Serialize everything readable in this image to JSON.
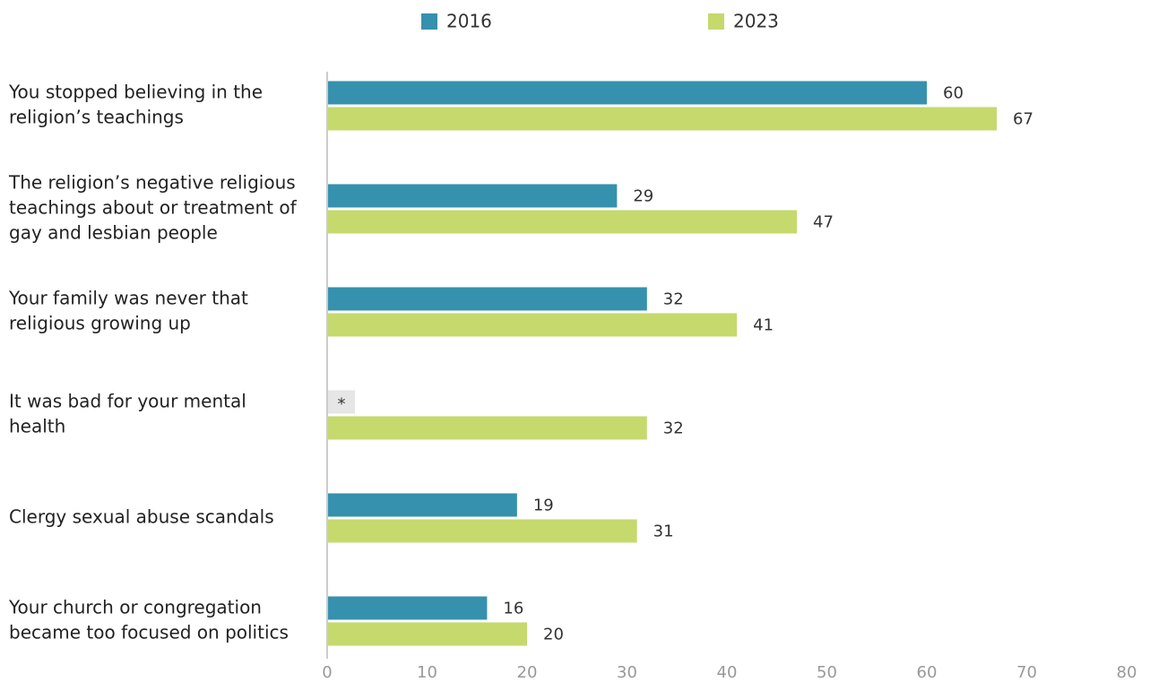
{
  "chart_data": {
    "type": "bar",
    "orientation": "horizontal",
    "categories": [
      [
        "You stopped believing in the",
        "religion’s teachings"
      ],
      [
        "The religion’s negative religious",
        "teachings about or treatment of",
        "gay and lesbian people"
      ],
      [
        "Your family was never that",
        "religious growing up"
      ],
      [
        "It was bad for your mental",
        "health"
      ],
      [
        "Clergy sexual abuse scandals"
      ],
      [
        "Your church or congregation",
        "became too focused on politics"
      ]
    ],
    "series": [
      {
        "name": "2016",
        "color": "#3591ad",
        "values": [
          60,
          29,
          32,
          null,
          19,
          16
        ],
        "value_labels": [
          "60",
          "29",
          "32",
          "*",
          "19",
          "16"
        ]
      },
      {
        "name": "2023",
        "color": "#c5d96d",
        "values": [
          67,
          47,
          41,
          32,
          31,
          20
        ]
      }
    ],
    "xlim": [
      0,
      80
    ],
    "xticks": [
      0,
      10,
      20,
      30,
      40,
      50,
      60,
      70,
      80
    ],
    "legend": "top",
    "missing_color": "#e6e6e6"
  }
}
